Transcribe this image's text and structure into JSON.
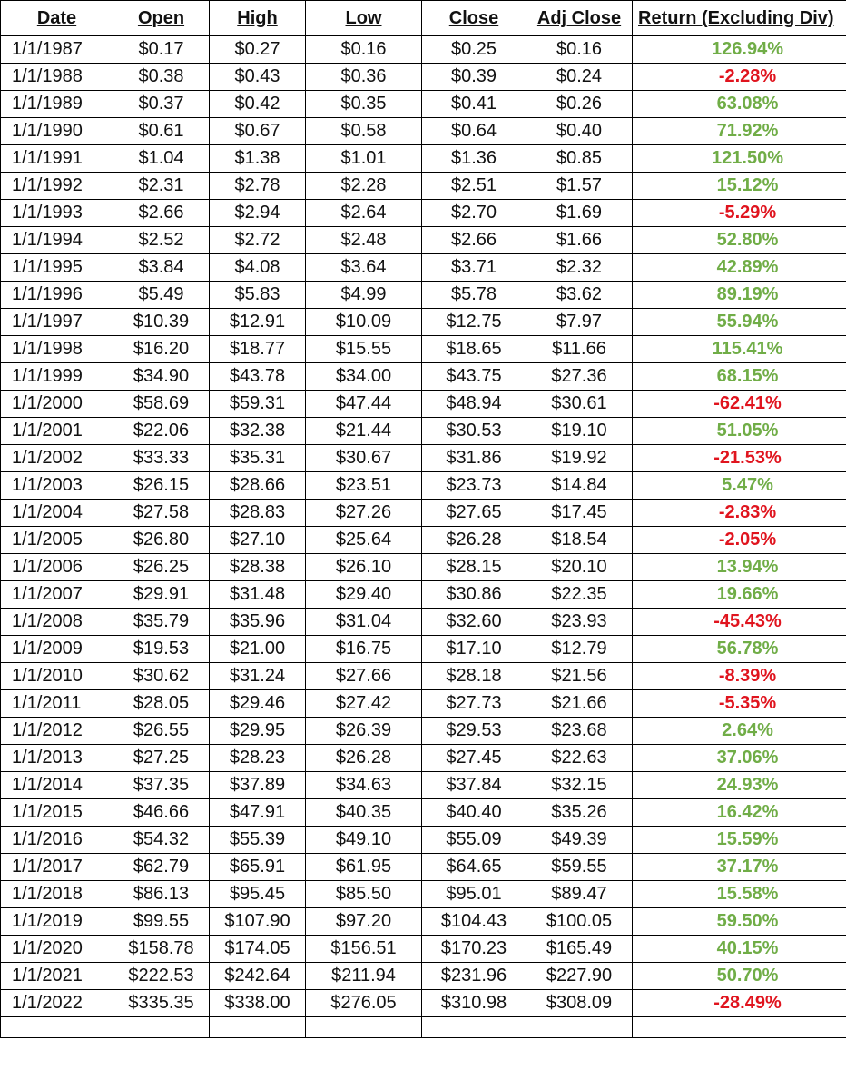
{
  "headers": [
    "Date",
    "Open",
    "High",
    "Low",
    "Close",
    "Adj Close",
    "Return (Excluding Div)"
  ],
  "colors": {
    "positive": "#70ad47",
    "negative": "#e0141e",
    "grid": "#000000",
    "text": "#111111"
  },
  "rows": [
    {
      "date": "1/1/1987",
      "open": "$0.17",
      "high": "$0.27",
      "low": "$0.16",
      "close": "$0.25",
      "adj": "$0.16",
      "ret": "126.94%"
    },
    {
      "date": "1/1/1988",
      "open": "$0.38",
      "high": "$0.43",
      "low": "$0.36",
      "close": "$0.39",
      "adj": "$0.24",
      "ret": "-2.28%"
    },
    {
      "date": "1/1/1989",
      "open": "$0.37",
      "high": "$0.42",
      "low": "$0.35",
      "close": "$0.41",
      "adj": "$0.26",
      "ret": "63.08%"
    },
    {
      "date": "1/1/1990",
      "open": "$0.61",
      "high": "$0.67",
      "low": "$0.58",
      "close": "$0.64",
      "adj": "$0.40",
      "ret": "71.92%"
    },
    {
      "date": "1/1/1991",
      "open": "$1.04",
      "high": "$1.38",
      "low": "$1.01",
      "close": "$1.36",
      "adj": "$0.85",
      "ret": "121.50%"
    },
    {
      "date": "1/1/1992",
      "open": "$2.31",
      "high": "$2.78",
      "low": "$2.28",
      "close": "$2.51",
      "adj": "$1.57",
      "ret": "15.12%"
    },
    {
      "date": "1/1/1993",
      "open": "$2.66",
      "high": "$2.94",
      "low": "$2.64",
      "close": "$2.70",
      "adj": "$1.69",
      "ret": "-5.29%"
    },
    {
      "date": "1/1/1994",
      "open": "$2.52",
      "high": "$2.72",
      "low": "$2.48",
      "close": "$2.66",
      "adj": "$1.66",
      "ret": "52.80%"
    },
    {
      "date": "1/1/1995",
      "open": "$3.84",
      "high": "$4.08",
      "low": "$3.64",
      "close": "$3.71",
      "adj": "$2.32",
      "ret": "42.89%"
    },
    {
      "date": "1/1/1996",
      "open": "$5.49",
      "high": "$5.83",
      "low": "$4.99",
      "close": "$5.78",
      "adj": "$3.62",
      "ret": "89.19%"
    },
    {
      "date": "1/1/1997",
      "open": "$10.39",
      "high": "$12.91",
      "low": "$10.09",
      "close": "$12.75",
      "adj": "$7.97",
      "ret": "55.94%"
    },
    {
      "date": "1/1/1998",
      "open": "$16.20",
      "high": "$18.77",
      "low": "$15.55",
      "close": "$18.65",
      "adj": "$11.66",
      "ret": "115.41%"
    },
    {
      "date": "1/1/1999",
      "open": "$34.90",
      "high": "$43.78",
      "low": "$34.00",
      "close": "$43.75",
      "adj": "$27.36",
      "ret": "68.15%"
    },
    {
      "date": "1/1/2000",
      "open": "$58.69",
      "high": "$59.31",
      "low": "$47.44",
      "close": "$48.94",
      "adj": "$30.61",
      "ret": "-62.41%"
    },
    {
      "date": "1/1/2001",
      "open": "$22.06",
      "high": "$32.38",
      "low": "$21.44",
      "close": "$30.53",
      "adj": "$19.10",
      "ret": "51.05%"
    },
    {
      "date": "1/1/2002",
      "open": "$33.33",
      "high": "$35.31",
      "low": "$30.67",
      "close": "$31.86",
      "adj": "$19.92",
      "ret": "-21.53%"
    },
    {
      "date": "1/1/2003",
      "open": "$26.15",
      "high": "$28.66",
      "low": "$23.51",
      "close": "$23.73",
      "adj": "$14.84",
      "ret": "5.47%"
    },
    {
      "date": "1/1/2004",
      "open": "$27.58",
      "high": "$28.83",
      "low": "$27.26",
      "close": "$27.65",
      "adj": "$17.45",
      "ret": "-2.83%"
    },
    {
      "date": "1/1/2005",
      "open": "$26.80",
      "high": "$27.10",
      "low": "$25.64",
      "close": "$26.28",
      "adj": "$18.54",
      "ret": "-2.05%"
    },
    {
      "date": "1/1/2006",
      "open": "$26.25",
      "high": "$28.38",
      "low": "$26.10",
      "close": "$28.15",
      "adj": "$20.10",
      "ret": "13.94%"
    },
    {
      "date": "1/1/2007",
      "open": "$29.91",
      "high": "$31.48",
      "low": "$29.40",
      "close": "$30.86",
      "adj": "$22.35",
      "ret": "19.66%"
    },
    {
      "date": "1/1/2008",
      "open": "$35.79",
      "high": "$35.96",
      "low": "$31.04",
      "close": "$32.60",
      "adj": "$23.93",
      "ret": "-45.43%"
    },
    {
      "date": "1/1/2009",
      "open": "$19.53",
      "high": "$21.00",
      "low": "$16.75",
      "close": "$17.10",
      "adj": "$12.79",
      "ret": "56.78%"
    },
    {
      "date": "1/1/2010",
      "open": "$30.62",
      "high": "$31.24",
      "low": "$27.66",
      "close": "$28.18",
      "adj": "$21.56",
      "ret": "-8.39%"
    },
    {
      "date": "1/1/2011",
      "open": "$28.05",
      "high": "$29.46",
      "low": "$27.42",
      "close": "$27.73",
      "adj": "$21.66",
      "ret": "-5.35%"
    },
    {
      "date": "1/1/2012",
      "open": "$26.55",
      "high": "$29.95",
      "low": "$26.39",
      "close": "$29.53",
      "adj": "$23.68",
      "ret": "2.64%"
    },
    {
      "date": "1/1/2013",
      "open": "$27.25",
      "high": "$28.23",
      "low": "$26.28",
      "close": "$27.45",
      "adj": "$22.63",
      "ret": "37.06%"
    },
    {
      "date": "1/1/2014",
      "open": "$37.35",
      "high": "$37.89",
      "low": "$34.63",
      "close": "$37.84",
      "adj": "$32.15",
      "ret": "24.93%"
    },
    {
      "date": "1/1/2015",
      "open": "$46.66",
      "high": "$47.91",
      "low": "$40.35",
      "close": "$40.40",
      "adj": "$35.26",
      "ret": "16.42%"
    },
    {
      "date": "1/1/2016",
      "open": "$54.32",
      "high": "$55.39",
      "low": "$49.10",
      "close": "$55.09",
      "adj": "$49.39",
      "ret": "15.59%"
    },
    {
      "date": "1/1/2017",
      "open": "$62.79",
      "high": "$65.91",
      "low": "$61.95",
      "close": "$64.65",
      "adj": "$59.55",
      "ret": "37.17%"
    },
    {
      "date": "1/1/2018",
      "open": "$86.13",
      "high": "$95.45",
      "low": "$85.50",
      "close": "$95.01",
      "adj": "$89.47",
      "ret": "15.58%"
    },
    {
      "date": "1/1/2019",
      "open": "$99.55",
      "high": "$107.90",
      "low": "$97.20",
      "close": "$104.43",
      "adj": "$100.05",
      "ret": "59.50%"
    },
    {
      "date": "1/1/2020",
      "open": "$158.78",
      "high": "$174.05",
      "low": "$156.51",
      "close": "$170.23",
      "adj": "$165.49",
      "ret": "40.15%"
    },
    {
      "date": "1/1/2021",
      "open": "$222.53",
      "high": "$242.64",
      "low": "$211.94",
      "close": "$231.96",
      "adj": "$227.90",
      "ret": "50.70%"
    },
    {
      "date": "1/1/2022",
      "open": "$335.35",
      "high": "$338.00",
      "low": "$276.05",
      "close": "$310.98",
      "adj": "$308.09",
      "ret": "-28.49%"
    }
  ]
}
